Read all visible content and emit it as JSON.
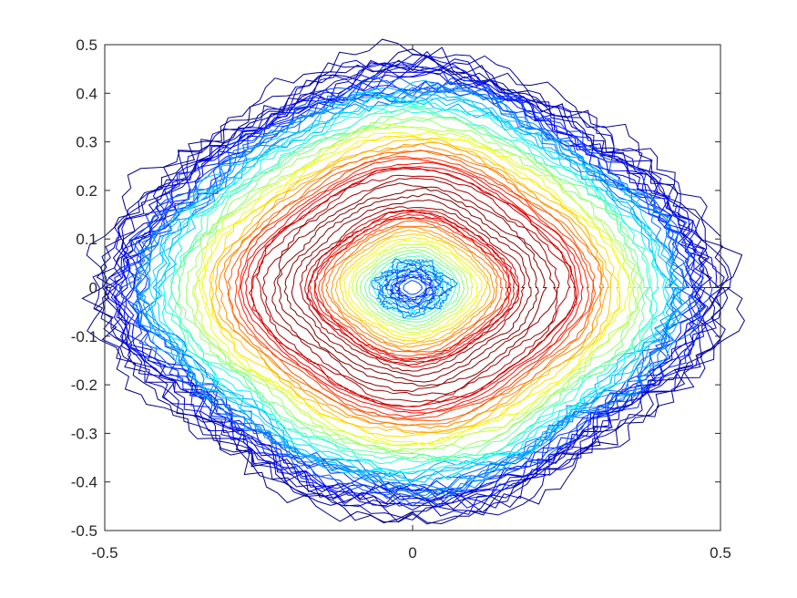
{
  "chart_data": {
    "type": "contour",
    "title": "",
    "xlabel": "",
    "ylabel": "",
    "xlim": [
      -0.5,
      0.5
    ],
    "ylim": [
      -0.5,
      0.5
    ],
    "x_ticks": [
      -0.5,
      0,
      0.5
    ],
    "x_tick_labels": [
      "-0.5",
      "0",
      "0.5"
    ],
    "y_ticks": [
      -0.5,
      -0.4,
      -0.3,
      -0.2,
      -0.1,
      0,
      0.1,
      0.2,
      0.3,
      0.4,
      0.5
    ],
    "y_tick_labels": [
      "-0.5",
      "-0.4",
      "-0.3",
      "-0.2",
      "-0.1",
      "0",
      "0.1",
      "0.2",
      "0.3",
      "0.4",
      "0.5"
    ],
    "grid": false,
    "legend": "none",
    "colormap": "jet",
    "colormap_stops": [
      "#00008f",
      "#0000ff",
      "#00ffff",
      "#ffff00",
      "#ff0000",
      "#800000"
    ],
    "surface": {
      "description_free_params": true,
      "center": [
        0.0,
        0.0
      ],
      "ring_radius": 0.2,
      "ring_width": 0.1,
      "outer_extent_x": 0.48,
      "outer_extent_y": 0.46,
      "level_count": 36
    }
  }
}
